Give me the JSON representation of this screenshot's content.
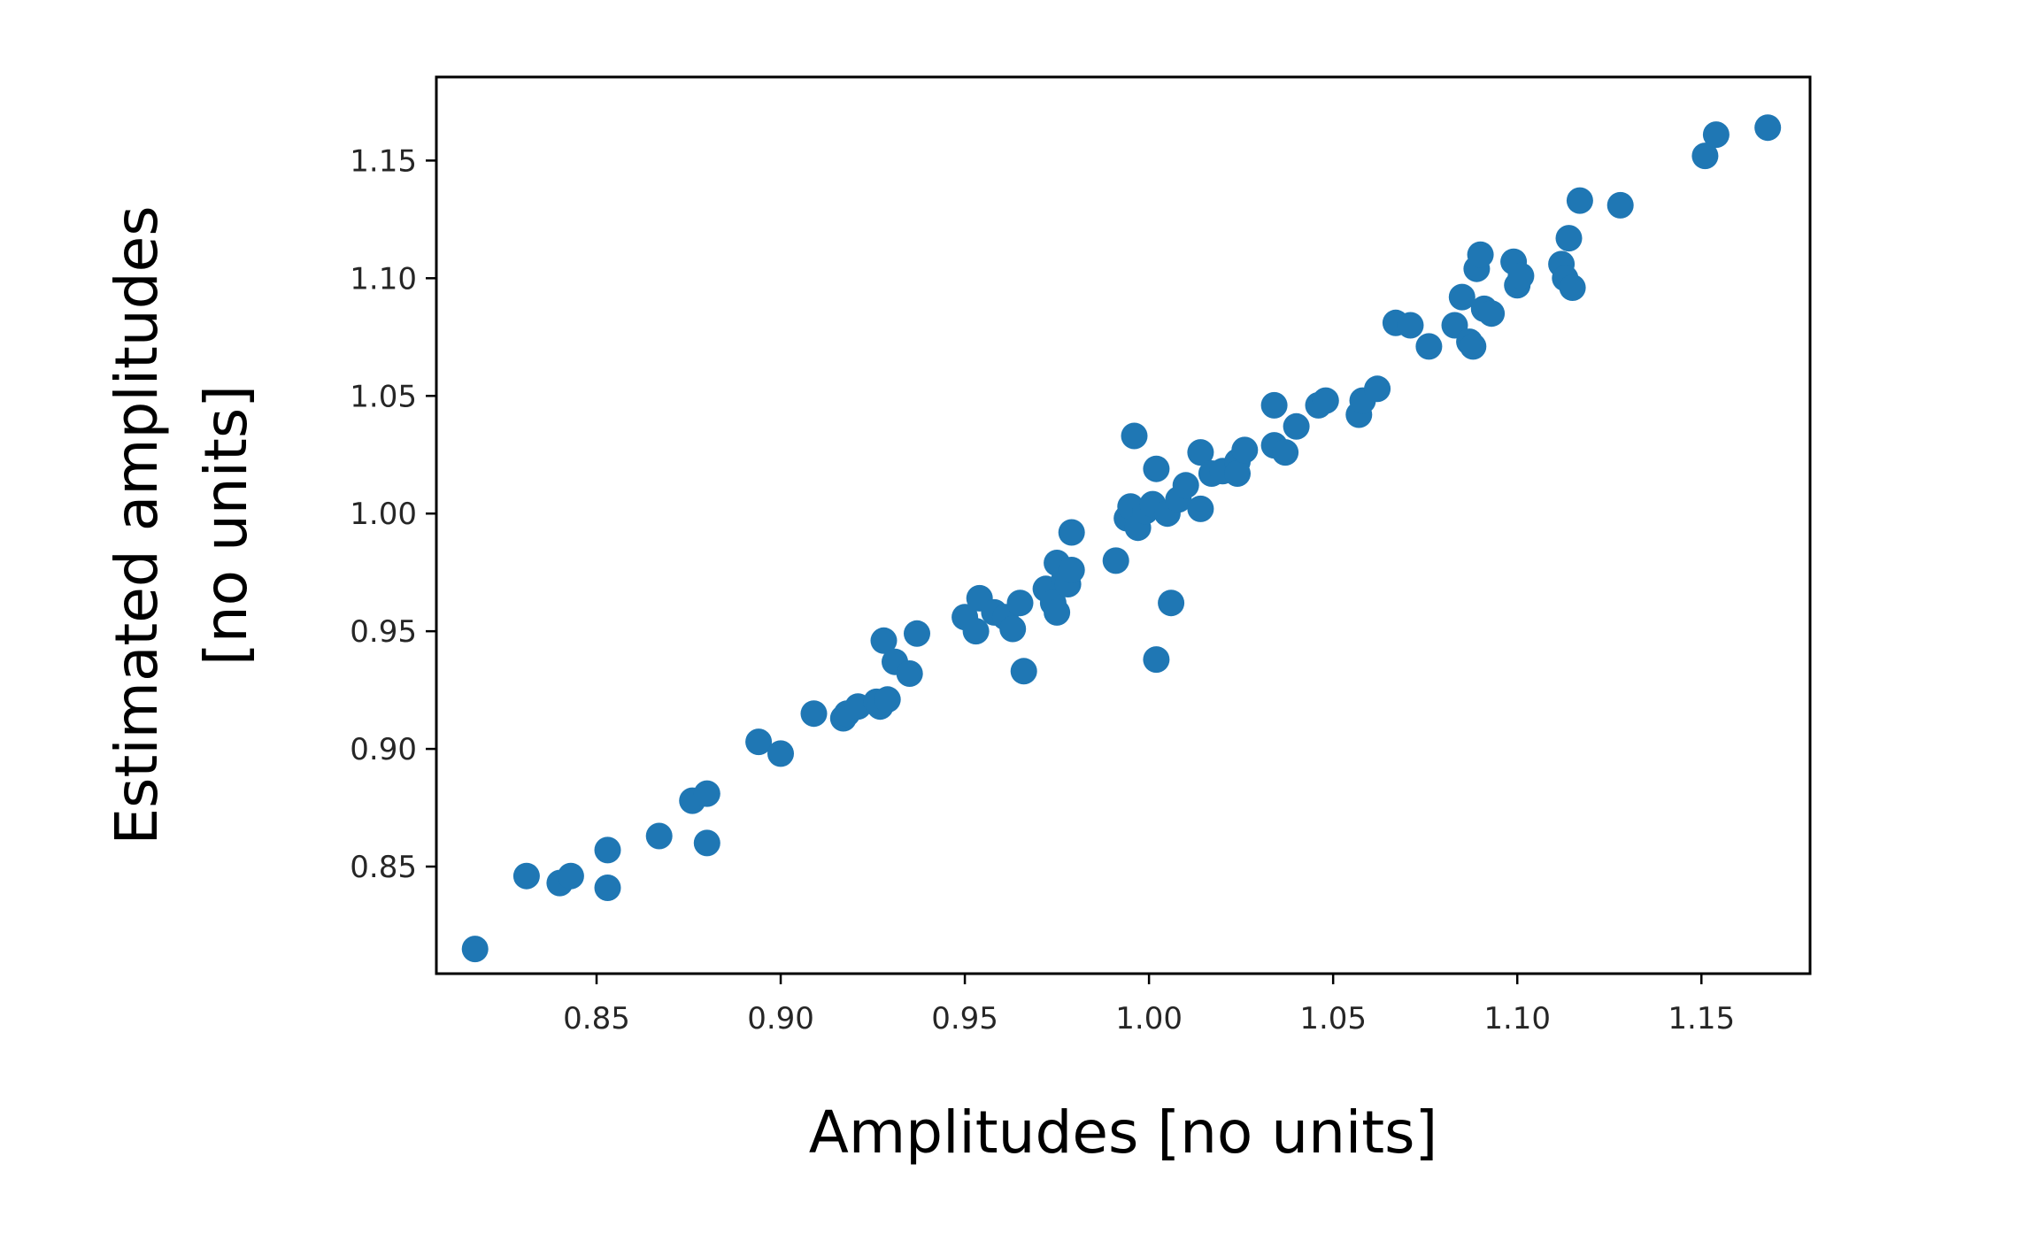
{
  "chart_data": {
    "type": "scatter",
    "title": "",
    "xlabel": "Amplitudes [no units]",
    "ylabel_lines": [
      "Estimated amplitudes",
      "[no units]"
    ],
    "xlim": [
      0.8065,
      1.1795
    ],
    "ylim": [
      0.8045,
      1.1855
    ],
    "xticks": [
      0.85,
      0.9,
      0.95,
      1.0,
      1.05,
      1.1,
      1.15
    ],
    "yticks": [
      0.85,
      0.9,
      0.95,
      1.0,
      1.05,
      1.1,
      1.15
    ],
    "xtick_labels": [
      "0.85",
      "0.90",
      "0.95",
      "1.00",
      "1.05",
      "1.10",
      "1.15"
    ],
    "ytick_labels": [
      "0.85",
      "0.90",
      "0.95",
      "1.00",
      "1.05",
      "1.10",
      "1.15"
    ],
    "grid": false,
    "marker_color": "#1f77b4",
    "points": [
      [
        0.817,
        0.815
      ],
      [
        0.831,
        0.846
      ],
      [
        0.84,
        0.843
      ],
      [
        0.843,
        0.846
      ],
      [
        0.853,
        0.857
      ],
      [
        0.853,
        0.841
      ],
      [
        0.867,
        0.863
      ],
      [
        0.876,
        0.878
      ],
      [
        0.88,
        0.881
      ],
      [
        0.88,
        0.86
      ],
      [
        0.894,
        0.903
      ],
      [
        0.9,
        0.898
      ],
      [
        0.909,
        0.915
      ],
      [
        0.917,
        0.913
      ],
      [
        0.918,
        0.915
      ],
      [
        0.921,
        0.918
      ],
      [
        0.926,
        0.92
      ],
      [
        0.927,
        0.918
      ],
      [
        0.929,
        0.921
      ],
      [
        0.928,
        0.946
      ],
      [
        0.931,
        0.937
      ],
      [
        0.935,
        0.932
      ],
      [
        0.937,
        0.949
      ],
      [
        0.95,
        0.956
      ],
      [
        0.953,
        0.95
      ],
      [
        0.954,
        0.964
      ],
      [
        0.958,
        0.958
      ],
      [
        0.961,
        0.956
      ],
      [
        0.963,
        0.951
      ],
      [
        0.965,
        0.962
      ],
      [
        0.966,
        0.933
      ],
      [
        0.972,
        0.968
      ],
      [
        0.974,
        0.962
      ],
      [
        0.975,
        0.958
      ],
      [
        0.975,
        0.979
      ],
      [
        0.977,
        0.972
      ],
      [
        0.978,
        0.97
      ],
      [
        0.979,
        0.976
      ],
      [
        0.979,
        0.992
      ],
      [
        0.991,
        0.98
      ],
      [
        0.994,
        0.998
      ],
      [
        0.995,
        1.003
      ],
      [
        0.996,
        1.033
      ],
      [
        0.997,
        0.994
      ],
      [
        0.999,
        1.001
      ],
      [
        1.001,
        1.004
      ],
      [
        1.002,
        1.019
      ],
      [
        1.002,
        0.938
      ],
      [
        1.005,
        1.0
      ],
      [
        1.006,
        0.962
      ],
      [
        1.008,
        1.006
      ],
      [
        1.01,
        1.012
      ],
      [
        1.014,
        1.026
      ],
      [
        1.014,
        1.002
      ],
      [
        1.017,
        1.017
      ],
      [
        1.02,
        1.018
      ],
      [
        1.024,
        1.022
      ],
      [
        1.024,
        1.017
      ],
      [
        1.026,
        1.027
      ],
      [
        1.034,
        1.046
      ],
      [
        1.034,
        1.029
      ],
      [
        1.037,
        1.026
      ],
      [
        1.04,
        1.037
      ],
      [
        1.046,
        1.046
      ],
      [
        1.048,
        1.048
      ],
      [
        1.057,
        1.042
      ],
      [
        1.058,
        1.048
      ],
      [
        1.062,
        1.053
      ],
      [
        1.067,
        1.081
      ],
      [
        1.071,
        1.08
      ],
      [
        1.076,
        1.071
      ],
      [
        1.083,
        1.08
      ],
      [
        1.085,
        1.092
      ],
      [
        1.087,
        1.073
      ],
      [
        1.088,
        1.071
      ],
      [
        1.089,
        1.104
      ],
      [
        1.09,
        1.11
      ],
      [
        1.091,
        1.087
      ],
      [
        1.093,
        1.085
      ],
      [
        1.099,
        1.107
      ],
      [
        1.1,
        1.097
      ],
      [
        1.101,
        1.101
      ],
      [
        1.112,
        1.106
      ],
      [
        1.113,
        1.1
      ],
      [
        1.114,
        1.117
      ],
      [
        1.115,
        1.096
      ],
      [
        1.117,
        1.133
      ],
      [
        1.128,
        1.131
      ],
      [
        1.151,
        1.152
      ],
      [
        1.154,
        1.161
      ],
      [
        1.168,
        1.164
      ]
    ]
  }
}
